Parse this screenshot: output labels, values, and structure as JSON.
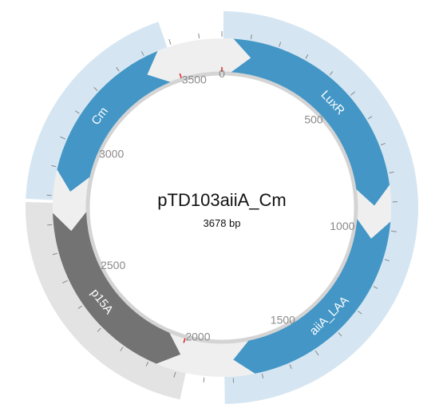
{
  "plasmid": {
    "name": "pTD103aiiA_Cm",
    "length_label": "3678 bp",
    "length_bp": 3678
  },
  "colors": {
    "backbone": "#efefef",
    "backbone_inner": "#d4d4d4",
    "feature_blue": "#4396c6",
    "highlight_blue": "#d5e6f2",
    "feature_gray": "#737373",
    "highlight_gray": "#e3e3e3",
    "tick": "#888888",
    "major_tick": "#dd2222",
    "label": "#8a8a8a"
  },
  "ticks": {
    "major_labels": [
      "0",
      "500",
      "1000",
      "1500",
      "2000",
      "2500",
      "3000",
      "3500"
    ],
    "major_values": [
      0,
      500,
      1000,
      1500,
      2000,
      2500,
      3000,
      3500
    ],
    "minor_step_bp": 100
  },
  "features": [
    {
      "id": "luxr",
      "label": "LuxR",
      "start_bp": 40,
      "end_bp": 912,
      "direction": "forward",
      "color": "blue"
    },
    {
      "id": "aiia-laa",
      "label": "aiiA_LAA",
      "start_bp": 968,
      "end_bp": 1795,
      "direction": "forward",
      "color": "blue"
    },
    {
      "id": "p15a",
      "label": "p15A",
      "start_bp": 2000,
      "end_bp": 2740,
      "direction": "reverse",
      "color": "gray"
    },
    {
      "id": "cm",
      "label": "Cm",
      "start_bp": 2820,
      "end_bp": 3450,
      "direction": "reverse",
      "color": "blue"
    }
  ]
}
